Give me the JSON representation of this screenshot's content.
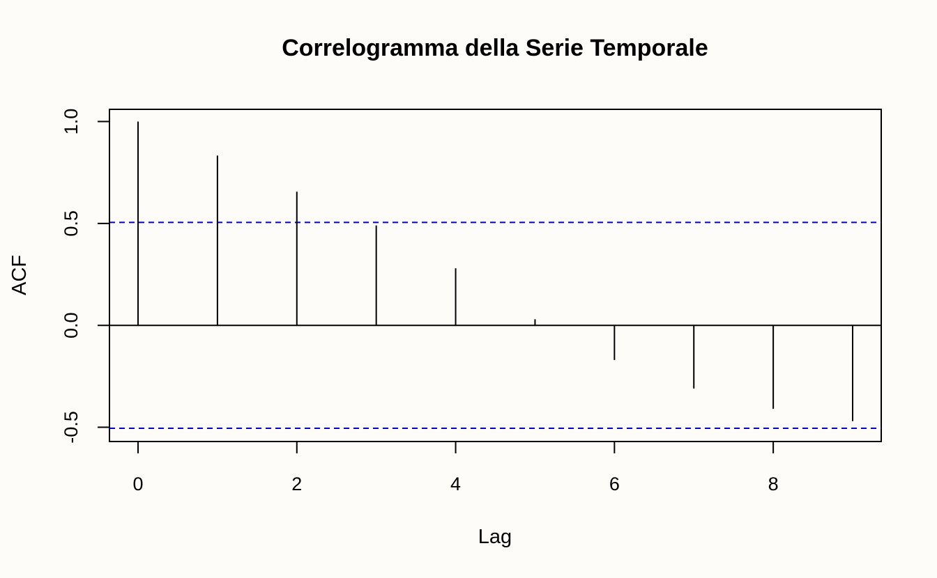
{
  "chart_data": {
    "type": "bar",
    "title": "Correlogramma della Serie Temporale",
    "xlabel": "Lag",
    "ylabel": "ACF",
    "x": [
      0,
      1,
      2,
      3,
      4,
      5,
      6,
      7,
      8,
      9
    ],
    "acf": [
      1.0,
      0.833,
      0.656,
      0.49,
      0.28,
      0.03,
      -0.17,
      -0.31,
      -0.41,
      -0.47
    ],
    "confidence_bounds": [
      0.505,
      -0.505
    ],
    "xlim": [
      -0.36,
      9.36
    ],
    "ylim": [
      -0.57,
      1.06
    ],
    "x_ticks": [
      0,
      2,
      4,
      6,
      8
    ],
    "x_tick_labels": [
      "0",
      "2",
      "4",
      "6",
      "8"
    ],
    "y_ticks": [
      -0.5,
      0.0,
      0.5,
      1.0
    ],
    "y_tick_labels": [
      "-0.5",
      "0.0",
      "0.5",
      "1.0"
    ],
    "grid": false,
    "colors": {
      "spikes": "#000000",
      "confidence": "#0000cc",
      "zero_line": "#000000",
      "background": "#fdfcf8"
    }
  }
}
